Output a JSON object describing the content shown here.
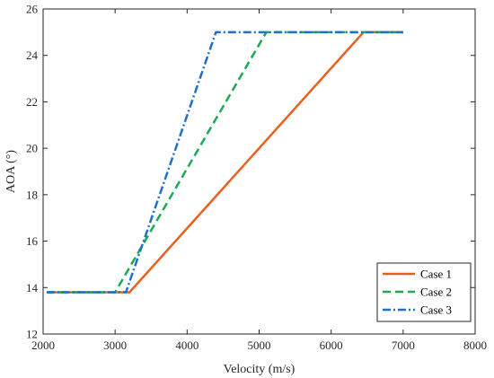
{
  "chart_data": {
    "type": "line",
    "title": "",
    "xlabel": "Velocity (m/s)",
    "ylabel": "AOA (°)",
    "xlim": [
      2000,
      8000
    ],
    "ylim": [
      12,
      26
    ],
    "xticks": [
      2000,
      3000,
      4000,
      5000,
      6000,
      7000,
      8000
    ],
    "yticks": [
      12,
      14,
      16,
      18,
      20,
      22,
      24,
      26
    ],
    "grid": false,
    "legend_position": "bottom-right",
    "series": [
      {
        "name": "Case 1",
        "color": "#e8601c",
        "style": "solid",
        "x": [
          2050,
          3200,
          6450,
          7000
        ],
        "y": [
          13.8,
          13.8,
          25,
          25
        ]
      },
      {
        "name": "Case 2",
        "color": "#1aaa55",
        "style": "dashed",
        "x": [
          2050,
          3000,
          5100,
          7000
        ],
        "y": [
          13.8,
          13.8,
          25,
          25
        ]
      },
      {
        "name": "Case 3",
        "color": "#1f6fd1",
        "style": "dashdot",
        "x": [
          2050,
          3150,
          4400,
          7000
        ],
        "y": [
          13.8,
          13.8,
          25,
          25
        ]
      }
    ]
  }
}
